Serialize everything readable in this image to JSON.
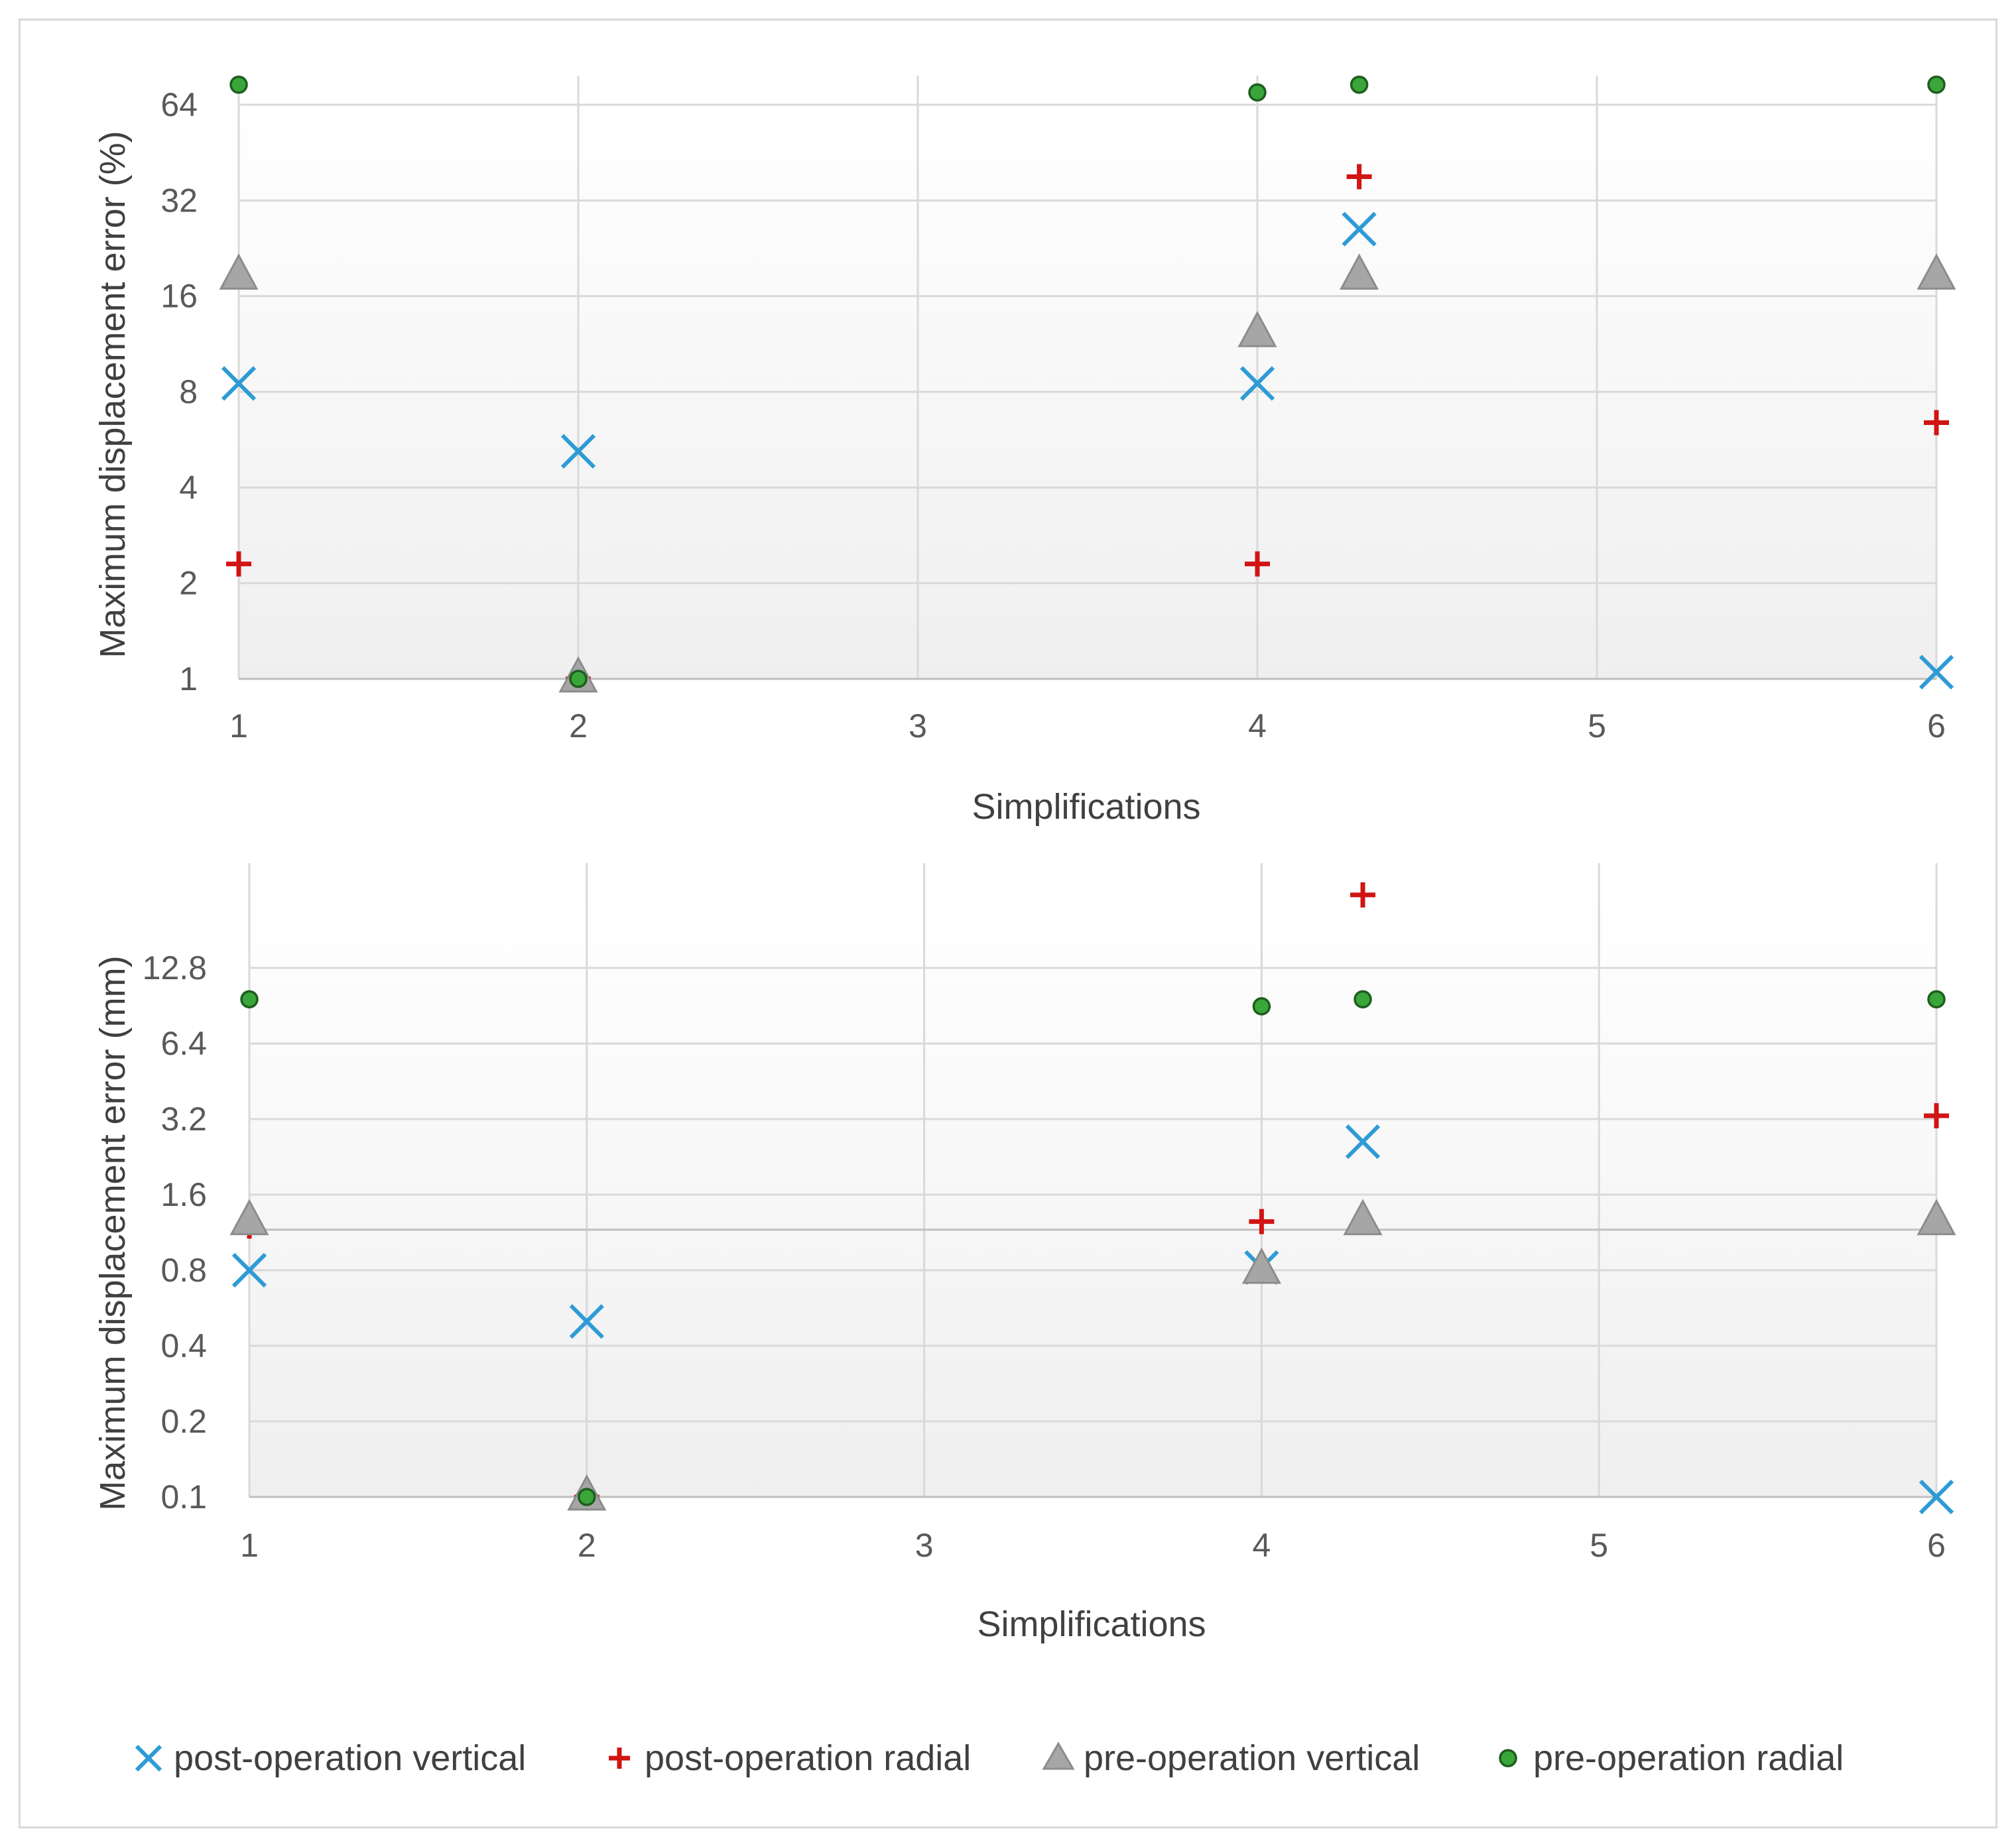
{
  "legend": {
    "items": [
      {
        "label": "post-operation vertical",
        "marker": "x",
        "color": "#2e9bd6"
      },
      {
        "label": "post-operation radial",
        "marker": "plus",
        "color": "#d11414"
      },
      {
        "label": "pre-operation vertical",
        "marker": "triangle",
        "color": "#a6a6a6"
      },
      {
        "label": "pre-operation radial",
        "marker": "circle",
        "color": "#3aa63a"
      }
    ]
  },
  "chart_data": [
    {
      "type": "scatter",
      "title": "",
      "xlabel": "Simplifications",
      "ylabel": "Maximum displacement error (%)",
      "xlim": [
        1,
        6
      ],
      "ylim": [
        1,
        64
      ],
      "y_scale": "log2",
      "x_ticks": [
        "1",
        "2",
        "3",
        "4",
        "5",
        "6"
      ],
      "y_ticks": [
        "1",
        "2",
        "4",
        "8",
        "16",
        "32",
        "64"
      ],
      "series": [
        {
          "name": "post-operation vertical",
          "points": [
            [
              1,
              8.5
            ],
            [
              2,
              5.2
            ],
            [
              4,
              8.5
            ],
            [
              4.3,
              26
            ],
            [
              6,
              1.05
            ]
          ]
        },
        {
          "name": "post-operation radial",
          "points": [
            [
              1,
              2.3
            ],
            [
              2,
              1.0
            ],
            [
              4,
              2.3
            ],
            [
              4.3,
              38
            ],
            [
              6,
              6.4
            ]
          ]
        },
        {
          "name": "pre-operation vertical",
          "points": [
            [
              1,
              18.5
            ],
            [
              2,
              1.0
            ],
            [
              4,
              12.2
            ],
            [
              4.3,
              18.5
            ],
            [
              6,
              18.5
            ]
          ]
        },
        {
          "name": "pre-operation radial",
          "points": [
            [
              1,
              74
            ],
            [
              2,
              1.0
            ],
            [
              4,
              70
            ],
            [
              4.3,
              74
            ],
            [
              6,
              74
            ]
          ]
        }
      ]
    },
    {
      "type": "scatter",
      "title": "",
      "xlabel": "Simplifications",
      "ylabel": "Maximum displacement error (mm)",
      "xlim": [
        1,
        6
      ],
      "ylim": [
        0.1,
        25.6
      ],
      "y_scale": "log2",
      "x_ticks": [
        "1",
        "2",
        "3",
        "4",
        "5",
        "6"
      ],
      "y_ticks": [
        "0.1",
        "0.2",
        "0.4",
        "0.8",
        "1.6",
        "3.2",
        "6.4",
        "12.8"
      ],
      "series": [
        {
          "name": "post-operation vertical",
          "points": [
            [
              1,
              0.8
            ],
            [
              2,
              0.5
            ],
            [
              4,
              0.82
            ],
            [
              4.3,
              2.6
            ],
            [
              6,
              0.1
            ]
          ]
        },
        {
          "name": "post-operation radial",
          "points": [
            [
              1,
              1.2
            ],
            [
              2,
              0.1
            ],
            [
              4,
              1.25
            ],
            [
              4.3,
              25
            ],
            [
              6,
              3.3
            ]
          ]
        },
        {
          "name": "pre-operation vertical",
          "points": [
            [
              1,
              1.25
            ],
            [
              2,
              0.1
            ],
            [
              4,
              0.8
            ],
            [
              4.3,
              1.25
            ],
            [
              6,
              1.25
            ]
          ]
        },
        {
          "name": "pre-operation radial",
          "points": [
            [
              1,
              9.6
            ],
            [
              2,
              0.1
            ],
            [
              4,
              9.0
            ],
            [
              4.3,
              9.6
            ],
            [
              6,
              9.6
            ]
          ]
        }
      ]
    }
  ]
}
